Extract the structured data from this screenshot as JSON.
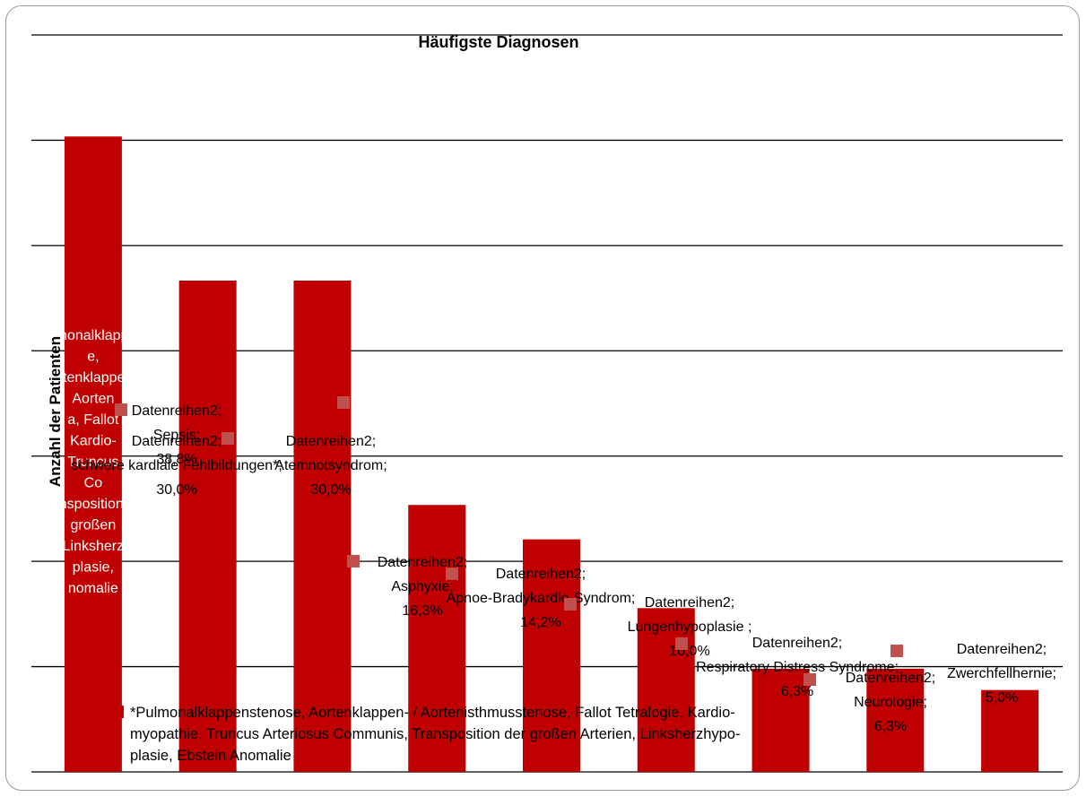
{
  "chart_data": {
    "type": "bar",
    "title": "Häufigste Diagnosen",
    "ylabel": "Anzahl der Patienten",
    "xlabel": "",
    "categories": [
      "Sepsis",
      "schwere kardiale Fehlbildungen*",
      "Atemnotsyndrom",
      "Asphyxie",
      "Apnoe-Bradykardie-Syndrom",
      "Lungenhypoplasie",
      "Respiratory Distress Syndrome",
      "Neurologie",
      "Zwerchfellhernie"
    ],
    "values": [
      38.8,
      30.0,
      30.0,
      16.3,
      14.2,
      10.0,
      6.3,
      6.3,
      5.0
    ],
    "value_unit": "%",
    "ylim": [
      0,
      45
    ],
    "grid": true,
    "bar_color": "#c00000",
    "data_labels": [
      {
        "series": "Datenreihen2;",
        "category": "Sepsis;",
        "value": "38,8%"
      },
      {
        "series": "Datenreihen2;",
        "category": "schwere kardiale Fehlbildungen*;",
        "value": "30,0%"
      },
      {
        "series": "Datenreihen2;",
        "category": "Atemnotsyndrom;",
        "value": "30,0%"
      },
      {
        "series": "Datenreihen2;",
        "category": "Asphyxie;",
        "value": "16,3%"
      },
      {
        "series": "Datenreihen2;",
        "category": "Apnoe-Bradykardie-Syndrom;",
        "value": "14,2%"
      },
      {
        "series": "Datenreihen2;",
        "category": "Lungenhypoplasie ;",
        "value": "10,0%"
      },
      {
        "series": "Datenreihen2;",
        "category": "Respiratory Distress Syndrome;",
        "value": "6,3%"
      },
      {
        "series": "Datenreihen2;",
        "category": "Neurologie;",
        "value": "6,3%"
      },
      {
        "series": "Datenreihen2;",
        "category": "Zwerchfellhernie;",
        "value": "5,0%"
      }
    ],
    "legend_note": [
      "*Pulmonalklappenstenose, Aortenklappen- / Aortenisthmusstenose, Fallot Tetralogie, Kardio-",
      "myopathie, Truncus Arteriosus Communis, Transposition der großen Arterien, Linksherzhypo-",
      "plasie, Ebstein Anomalie"
    ],
    "in_bar_text": [
      "Pulmonalklappens",
      "e,",
      "Aortenklappen- /",
      "Aorten",
      "a, Fallot",
      "Kardio-",
      "Truncus",
      "Co",
      "Transposition der",
      "großen",
      "Linksherz",
      "plasie,",
      "nomalie"
    ]
  }
}
